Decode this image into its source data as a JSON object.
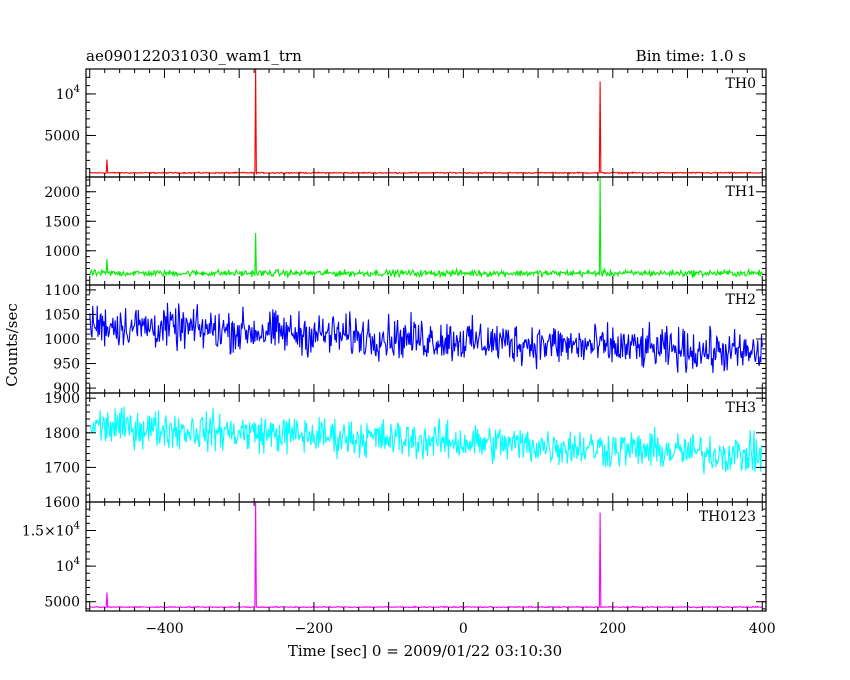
{
  "header": {
    "left": "ae090122031030_wam1_trn",
    "right": "Bin time: 1.0 s"
  },
  "chart_data": {
    "type": "line",
    "xlabel": "Time [sec] 0 = 2009/01/22 03:10:30",
    "ylabel": "Counts/sec",
    "xlim": [
      -505,
      405
    ],
    "xticks": [
      -400,
      -200,
      0,
      200,
      400
    ],
    "xtick_labels": [
      "−400",
      "−200",
      "0",
      "200",
      "400"
    ],
    "grid": false,
    "panels": [
      {
        "name": "TH0",
        "color": "#ff0000",
        "ylim": [
          0,
          13000
        ],
        "yticks": [
          {
            "v": 5000,
            "label": "5000"
          },
          {
            "v": 10000,
            "label": "10",
            "sup": "4"
          }
        ],
        "baseline": 500,
        "noise": 60,
        "trend": 0,
        "spikes": [
          {
            "t": -477,
            "v": 2100
          },
          {
            "t": -278,
            "v": 13000
          },
          {
            "t": 183,
            "v": 11500
          }
        ]
      },
      {
        "name": "TH1",
        "color": "#00ee00",
        "ylim": [
          420,
          2250
        ],
        "yticks": [
          {
            "v": 1000,
            "label": "1000"
          },
          {
            "v": 1500,
            "label": "1500"
          },
          {
            "v": 2000,
            "label": "2000"
          }
        ],
        "baseline": 620,
        "noise": 45,
        "trend": 0,
        "spikes": [
          {
            "t": -477,
            "v": 860
          },
          {
            "t": -278,
            "v": 1300
          },
          {
            "t": 183,
            "v": 2250
          }
        ]
      },
      {
        "name": "TH2",
        "color": "#0000ff",
        "ylim": [
          890,
          1110
        ],
        "yticks": [
          {
            "v": 900,
            "label": "900"
          },
          {
            "v": 950,
            "label": "950"
          },
          {
            "v": 1000,
            "label": "1000"
          },
          {
            "v": 1050,
            "label": "1050"
          },
          {
            "v": 1100,
            "label": "1100"
          }
        ],
        "baseline": 1030,
        "noise": 35,
        "trend": -60,
        "spikes": []
      },
      {
        "name": "TH3",
        "color": "#00ffff",
        "ylim": [
          1600,
          1915
        ],
        "yticks": [
          {
            "v": 1600,
            "label": "1600"
          },
          {
            "v": 1700,
            "label": "1700"
          },
          {
            "v": 1800,
            "label": "1800"
          },
          {
            "v": 1900,
            "label": "1900"
          }
        ],
        "baseline": 1820,
        "noise": 45,
        "trend": -85,
        "spikes": []
      },
      {
        "name": "TH0123",
        "color": "#ff00ff",
        "ylim": [
          3700,
          19000
        ],
        "yticks": [
          {
            "v": 5000,
            "label": "5000"
          },
          {
            "v": 10000,
            "label": "10",
            "sup": "4"
          },
          {
            "v": 15000,
            "label": "1.5×10",
            "sup": "4"
          }
        ],
        "baseline": 4250,
        "noise": 70,
        "trend": 0,
        "spikes": [
          {
            "t": -477,
            "v": 6300
          },
          {
            "t": -278,
            "v": 19000
          },
          {
            "t": 183,
            "v": 17500
          }
        ]
      }
    ]
  }
}
